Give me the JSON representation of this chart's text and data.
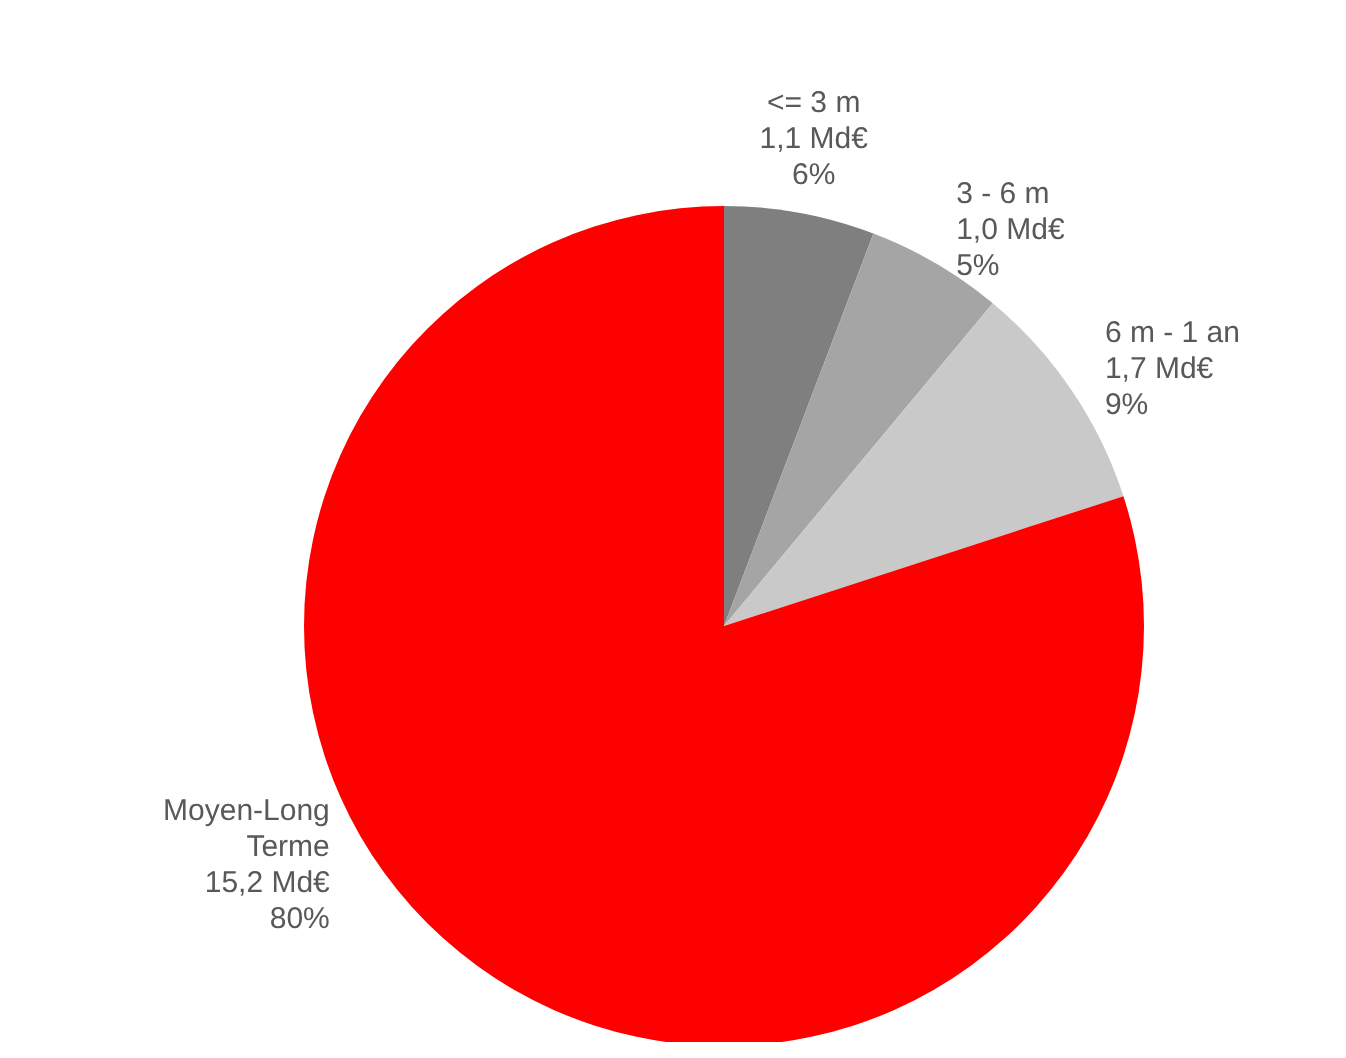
{
  "chart_data": {
    "type": "pie",
    "categories": [
      "<= 3 m",
      "3 - 6 m",
      "6 m - 1 an",
      "Moyen-Long Terme"
    ],
    "values": [
      1.1,
      1.0,
      1.7,
      15.2
    ],
    "colors": [
      "#7f7f7f",
      "#a5a5a5",
      "#c9c9c9",
      "#ff0000"
    ],
    "value_labels": [
      "1,1 Md€\n6%",
      "1,0 Md€\n5%",
      "1,7 Md€\n9%",
      "15,2 Md€\n80%"
    ]
  }
}
